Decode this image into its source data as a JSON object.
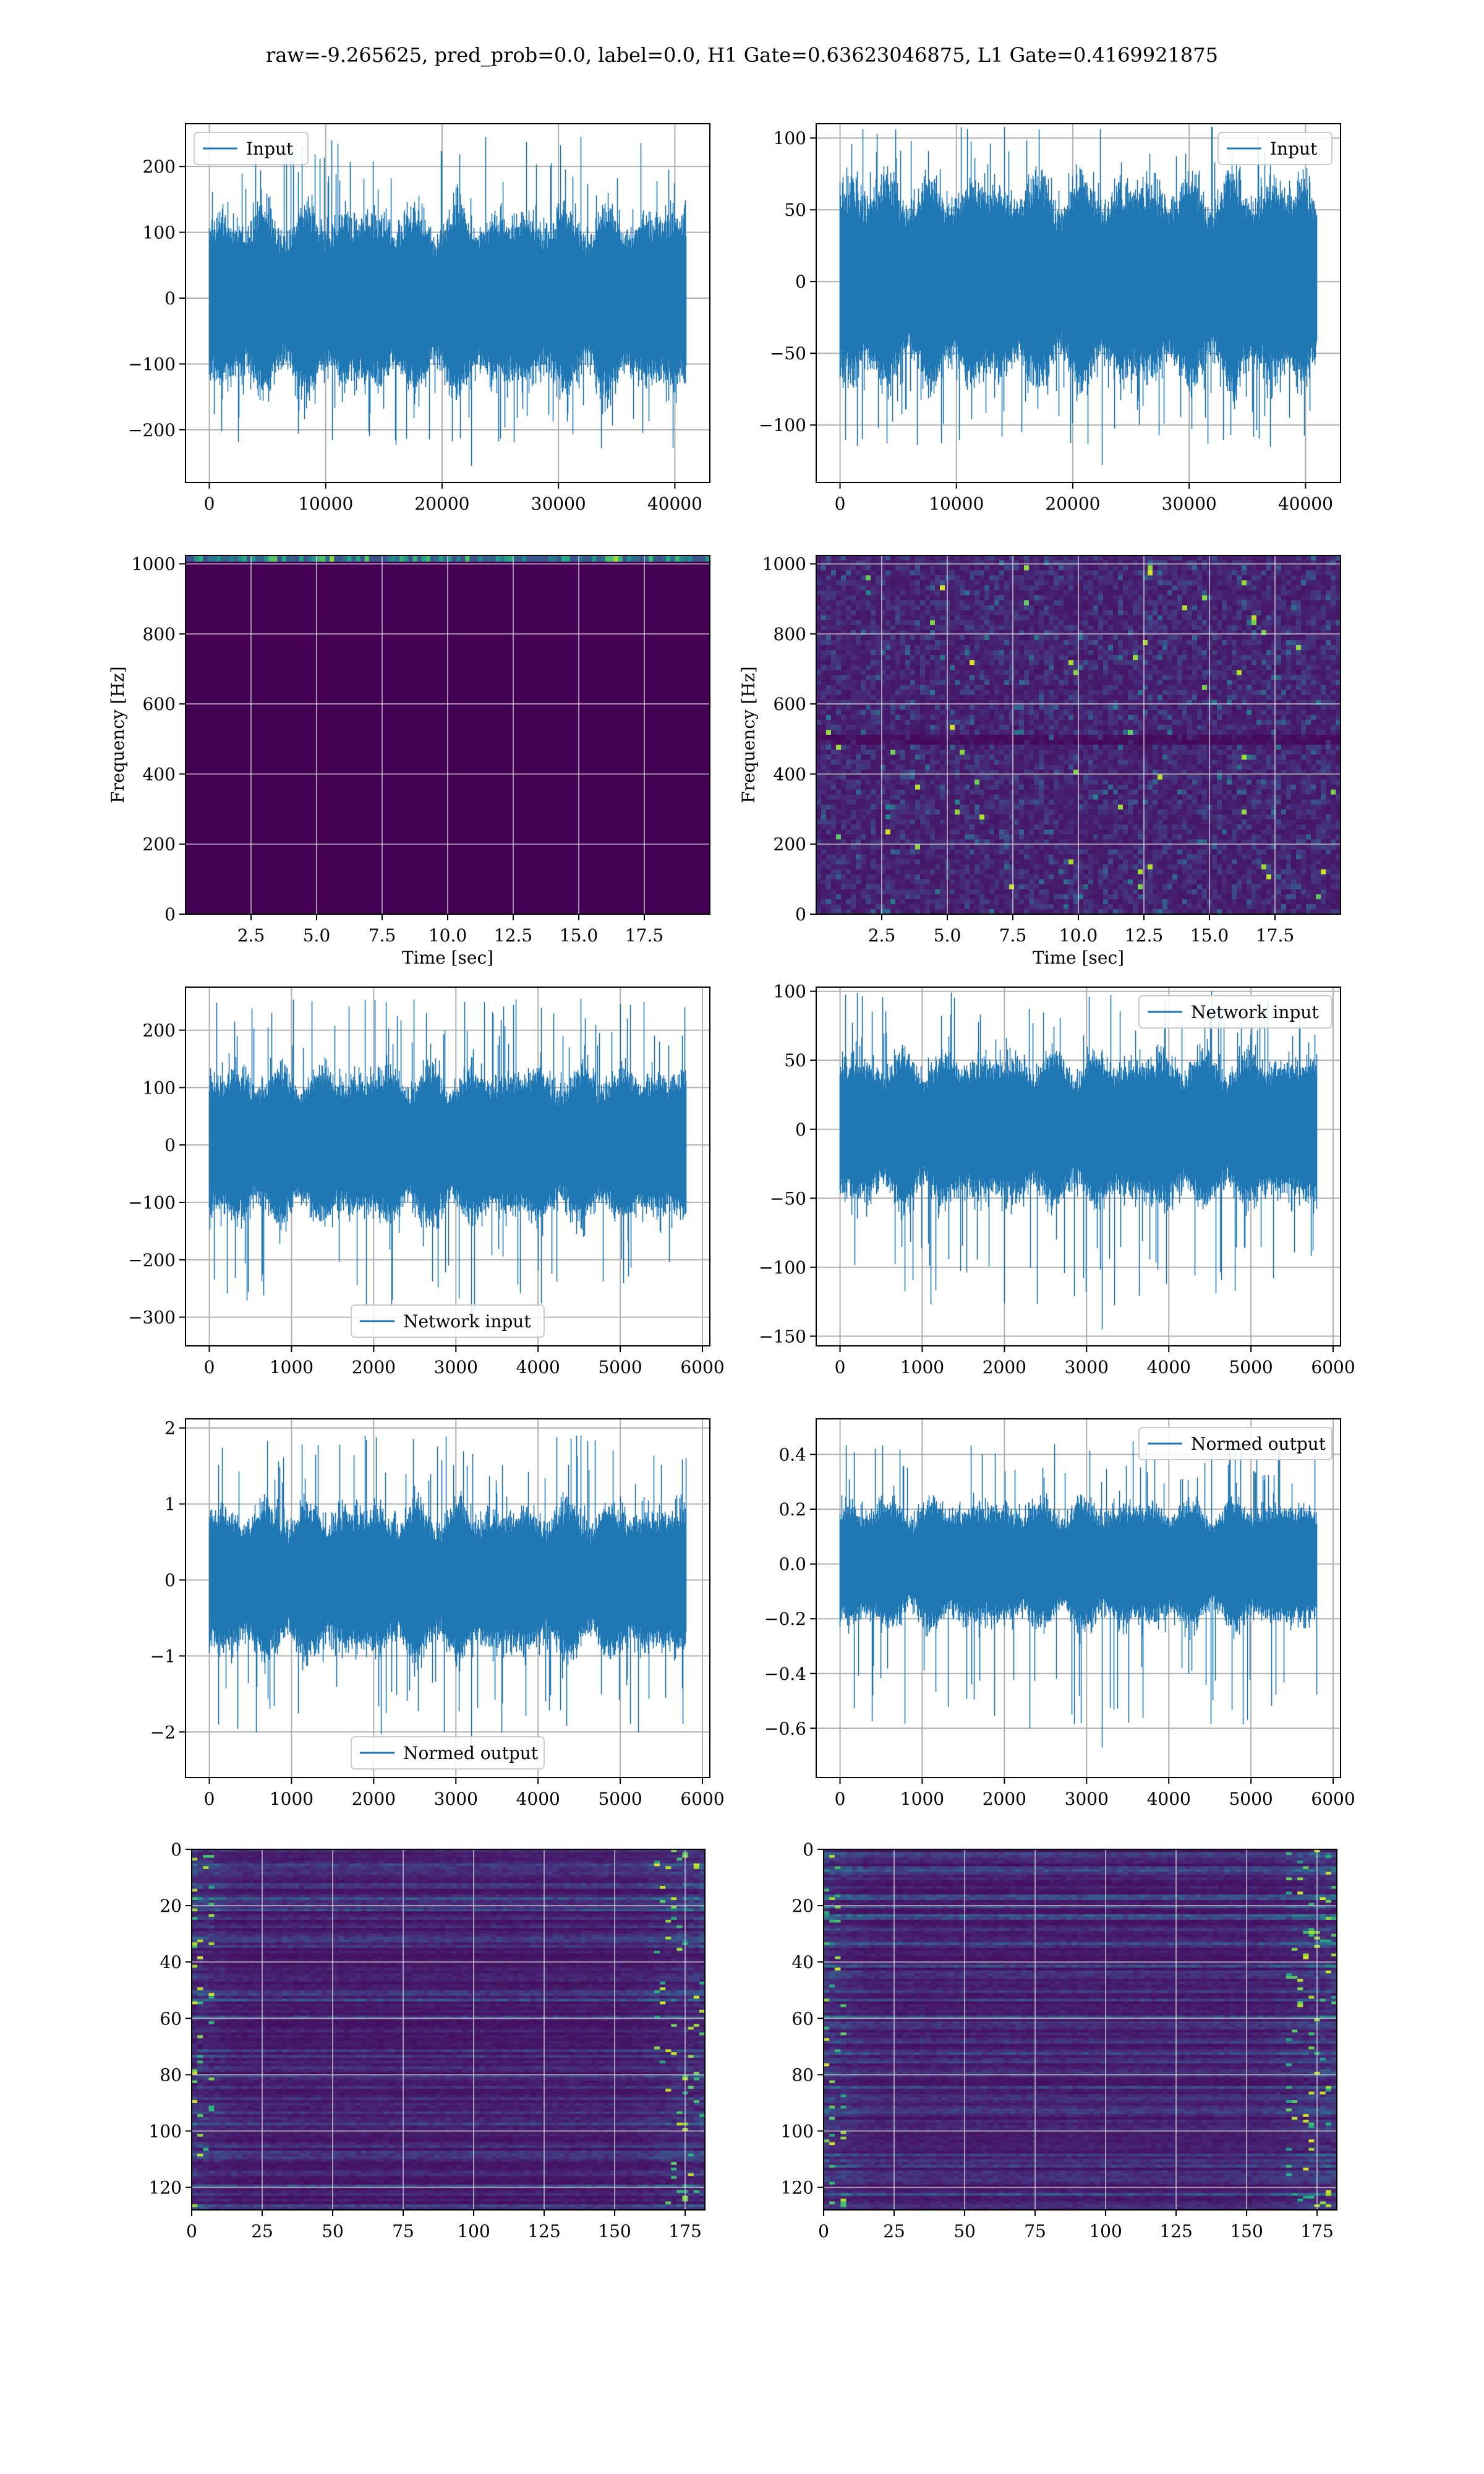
{
  "figure": {
    "title": "raw=-9.265625, pred_prob=0.0, label=0.0, H1 Gate=0.63623046875, L1 Gate=0.4169921875"
  },
  "chart_data": [
    {
      "id": "h1-input",
      "type": "line",
      "title": "",
      "xlabel": "",
      "ylabel": "",
      "legend": {
        "label": "Input",
        "loc": "upper-left"
      },
      "xlim": [
        -2048,
        43008
      ],
      "ylim": [
        -280,
        265
      ],
      "xticks": [
        0,
        10000,
        20000,
        30000,
        40000
      ],
      "xtick_labels": [
        "0",
        "10000",
        "20000",
        "30000",
        "40000"
      ],
      "yticks": [
        -200,
        -100,
        0,
        100,
        200
      ],
      "ytick_labels": [
        "−200",
        "−100",
        "0",
        "100",
        "200"
      ],
      "grid": true,
      "color": "#1f77b4",
      "series_summary": {
        "n": 40960,
        "x_range": [
          0,
          40960
        ],
        "typical_envelope": [
          -140,
          135
        ],
        "max_peak": 245,
        "min_peak": -255
      }
    },
    {
      "id": "l1-input",
      "type": "line",
      "title": "",
      "xlabel": "",
      "ylabel": "",
      "legend": {
        "label": "Input",
        "loc": "upper-right"
      },
      "xlim": [
        -2048,
        43008
      ],
      "ylim": [
        -140,
        110
      ],
      "xticks": [
        0,
        10000,
        20000,
        30000,
        40000
      ],
      "xtick_labels": [
        "0",
        "10000",
        "20000",
        "30000",
        "40000"
      ],
      "yticks": [
        -100,
        -50,
        0,
        50,
        100
      ],
      "ytick_labels": [
        "−100",
        "−50",
        "0",
        "50",
        "100"
      ],
      "grid": true,
      "color": "#1f77b4",
      "series_summary": {
        "n": 40960,
        "x_range": [
          0,
          40960
        ],
        "typical_envelope": [
          -72,
          72
        ],
        "max_peak": 108,
        "min_peak": -128
      }
    },
    {
      "id": "h1-spectrogram",
      "type": "heatmap",
      "title": "",
      "xlabel": "Time [sec]",
      "ylabel": "Frequency [Hz]",
      "xlim": [
        0,
        20
      ],
      "ylim": [
        0,
        1024
      ],
      "xticks": [
        2.5,
        5.0,
        7.5,
        10.0,
        12.5,
        15.0,
        17.5
      ],
      "xtick_labels": [
        "2.5",
        "5.0",
        "7.5",
        "10.0",
        "12.5",
        "15.0",
        "17.5"
      ],
      "yticks": [
        0,
        200,
        400,
        600,
        800,
        1000
      ],
      "ytick_labels": [
        "0",
        "200",
        "400",
        "600",
        "800",
        "1000"
      ],
      "grid": true,
      "colormap": "viridis",
      "description": "uniform dark background; power concentrated in a thin band near 1024 Hz"
    },
    {
      "id": "l1-spectrogram",
      "type": "heatmap",
      "title": "",
      "xlabel": "Time [sec]",
      "ylabel": "Frequency [Hz]",
      "xlim": [
        0,
        20
      ],
      "ylim": [
        0,
        1024
      ],
      "xticks": [
        2.5,
        5.0,
        7.5,
        10.0,
        12.5,
        15.0,
        17.5
      ],
      "xtick_labels": [
        "2.5",
        "5.0",
        "7.5",
        "10.0",
        "12.5",
        "15.0",
        "17.5"
      ],
      "yticks": [
        0,
        200,
        400,
        600,
        800,
        1000
      ],
      "ytick_labels": [
        "0",
        "200",
        "400",
        "600",
        "800",
        "1000"
      ],
      "grid": true,
      "colormap": "viridis",
      "description": "speckled noise across all frequencies, darker line near 500 Hz"
    },
    {
      "id": "h1-network-input",
      "type": "line",
      "title": "",
      "xlabel": "",
      "ylabel": "",
      "legend": {
        "label": "Network input",
        "loc": "lower-center"
      },
      "xlim": [
        -290,
        6090
      ],
      "ylim": [
        -350,
        275
      ],
      "xticks": [
        0,
        1000,
        2000,
        3000,
        4000,
        5000,
        6000
      ],
      "xtick_labels": [
        "0",
        "1000",
        "2000",
        "3000",
        "4000",
        "5000",
        "6000"
      ],
      "yticks": [
        -300,
        -200,
        -100,
        0,
        100,
        200
      ],
      "ytick_labels": [
        "−300",
        "−200",
        "−100",
        "0",
        "100",
        "200"
      ],
      "grid": true,
      "color": "#1f77b4",
      "series_summary": {
        "n": 5800,
        "x_range": [
          0,
          5800
        ],
        "typical_envelope": [
          -135,
          135
        ],
        "max_peak": 255,
        "min_peak": -320
      }
    },
    {
      "id": "l1-network-input",
      "type": "line",
      "title": "",
      "xlabel": "",
      "ylabel": "",
      "legend": {
        "label": "Network input",
        "loc": "upper-right"
      },
      "xlim": [
        -290,
        6090
      ],
      "ylim": [
        -157,
        103
      ],
      "xticks": [
        0,
        1000,
        2000,
        3000,
        4000,
        5000,
        6000
      ],
      "xtick_labels": [
        "0",
        "1000",
        "2000",
        "3000",
        "4000",
        "5000",
        "6000"
      ],
      "yticks": [
        -150,
        -100,
        -50,
        0,
        50,
        100
      ],
      "ytick_labels": [
        "−150",
        "−100",
        "−50",
        "0",
        "50",
        "100"
      ],
      "grid": true,
      "color": "#1f77b4",
      "series_summary": {
        "n": 5800,
        "x_range": [
          0,
          5800
        ],
        "typical_envelope": [
          -55,
          55
        ],
        "max_peak": 100,
        "min_peak": -145
      }
    },
    {
      "id": "h1-normed-output",
      "type": "line",
      "title": "",
      "xlabel": "",
      "ylabel": "",
      "legend": {
        "label": "Normed output",
        "loc": "lower-center"
      },
      "xlim": [
        -290,
        6090
      ],
      "ylim": [
        -2.6,
        2.12
      ],
      "xticks": [
        0,
        1000,
        2000,
        3000,
        4000,
        5000,
        6000
      ],
      "xtick_labels": [
        "0",
        "1000",
        "2000",
        "3000",
        "4000",
        "5000",
        "6000"
      ],
      "yticks": [
        -2,
        -1,
        0,
        1,
        2
      ],
      "ytick_labels": [
        "−2",
        "−1",
        "0",
        "1",
        "2"
      ],
      "grid": true,
      "color": "#1f77b4",
      "series_summary": {
        "n": 5800,
        "x_range": [
          0,
          5800
        ],
        "typical_envelope": [
          -1.0,
          1.0
        ],
        "max_peak": 1.9,
        "min_peak": -2.3
      }
    },
    {
      "id": "l1-normed-output",
      "type": "line",
      "title": "",
      "xlabel": "",
      "ylabel": "",
      "legend": {
        "label": "Normed output",
        "loc": "upper-right"
      },
      "xlim": [
        -290,
        6090
      ],
      "ylim": [
        -0.78,
        0.53
      ],
      "xticks": [
        0,
        1000,
        2000,
        3000,
        4000,
        5000,
        6000
      ],
      "xtick_labels": [
        "0",
        "1000",
        "2000",
        "3000",
        "4000",
        "5000",
        "6000"
      ],
      "yticks": [
        -0.6,
        -0.4,
        -0.2,
        0.0,
        0.2,
        0.4
      ],
      "ytick_labels": [
        "−0.6",
        "−0.4",
        "−0.2",
        "0.0",
        "0.2",
        "0.4"
      ],
      "grid": true,
      "color": "#1f77b4",
      "series_summary": {
        "n": 5800,
        "x_range": [
          0,
          5800
        ],
        "typical_envelope": [
          -0.23,
          0.23
        ],
        "max_peak": 0.45,
        "min_peak": -0.67
      }
    },
    {
      "id": "h1-feature-map",
      "type": "heatmap",
      "title": "",
      "xlabel": "",
      "ylabel": "",
      "xlim": [
        0,
        182
      ],
      "ylim": [
        128,
        0
      ],
      "xticks": [
        0,
        25,
        50,
        75,
        100,
        125,
        150,
        175
      ],
      "xtick_labels": [
        "0",
        "25",
        "50",
        "75",
        "100",
        "125",
        "150",
        "175"
      ],
      "yticks": [
        0,
        20,
        40,
        60,
        80,
        100,
        120
      ],
      "ytick_labels": [
        "0",
        "20",
        "40",
        "60",
        "80",
        "100",
        "120"
      ],
      "grid": true,
      "colormap": "viridis",
      "rows": 128,
      "cols": 182,
      "description": "horizontal channel stripes; brighter activations near left and right edges"
    },
    {
      "id": "l1-feature-map",
      "type": "heatmap",
      "title": "",
      "xlabel": "",
      "ylabel": "",
      "xlim": [
        0,
        182
      ],
      "ylim": [
        128,
        0
      ],
      "xticks": [
        0,
        25,
        50,
        75,
        100,
        125,
        150,
        175
      ],
      "xtick_labels": [
        "0",
        "25",
        "50",
        "75",
        "100",
        "125",
        "150",
        "175"
      ],
      "yticks": [
        0,
        20,
        40,
        60,
        80,
        100,
        120
      ],
      "ytick_labels": [
        "0",
        "20",
        "40",
        "60",
        "80",
        "100",
        "120"
      ],
      "grid": true,
      "colormap": "viridis",
      "rows": 128,
      "cols": 182,
      "description": "horizontal channel stripes; brighter activations near left and right edges"
    }
  ]
}
